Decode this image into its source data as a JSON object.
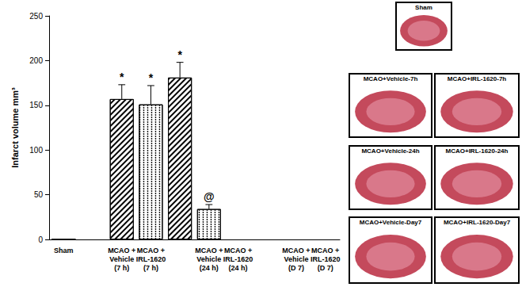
{
  "chart_data": {
    "type": "bar",
    "y_label": "Infarct volume mm³",
    "categories": [
      "Sham",
      null,
      "MCAO +\nVehicle\n(7 h)",
      "MCAO +\nIRL-1620\n(7 h)",
      null,
      "MCAO +\nVehicle\n(24 h)",
      "MCAO +\nIRL-1620\n(24 h)",
      null,
      "MCAO +\nVehicle\n(D 7)",
      "MCAO +\nIRL-1620\n(D 7)"
    ],
    "values": [
      0,
      null,
      157,
      151,
      181,
      34,
      null,
      null,
      null,
      null
    ],
    "errors": [
      null,
      null,
      16,
      21,
      17,
      5,
      null,
      null,
      null,
      null
    ],
    "annotations": [
      null,
      null,
      "*",
      "*",
      "*",
      "@",
      null,
      null,
      null,
      null
    ],
    "colors": [
      "#000000",
      null,
      "#000000",
      "#000000",
      null,
      "#000000",
      "#000000",
      null,
      "#000000",
      "#000000"
    ],
    "ylim": [
      0,
      250
    ],
    "yticks": [
      0,
      50,
      100,
      150,
      200,
      250
    ],
    "grid": false
  },
  "images": [
    "Sham",
    "MCAO+Vehicle-7h",
    "MCAO+IRL-1620-7h",
    "MCAO+Vehicle-24h",
    "MCAO+IRL-1620-24h",
    "MCAO+Vehicle-Day7",
    "MCAO+IRL-1620-Day7"
  ]
}
